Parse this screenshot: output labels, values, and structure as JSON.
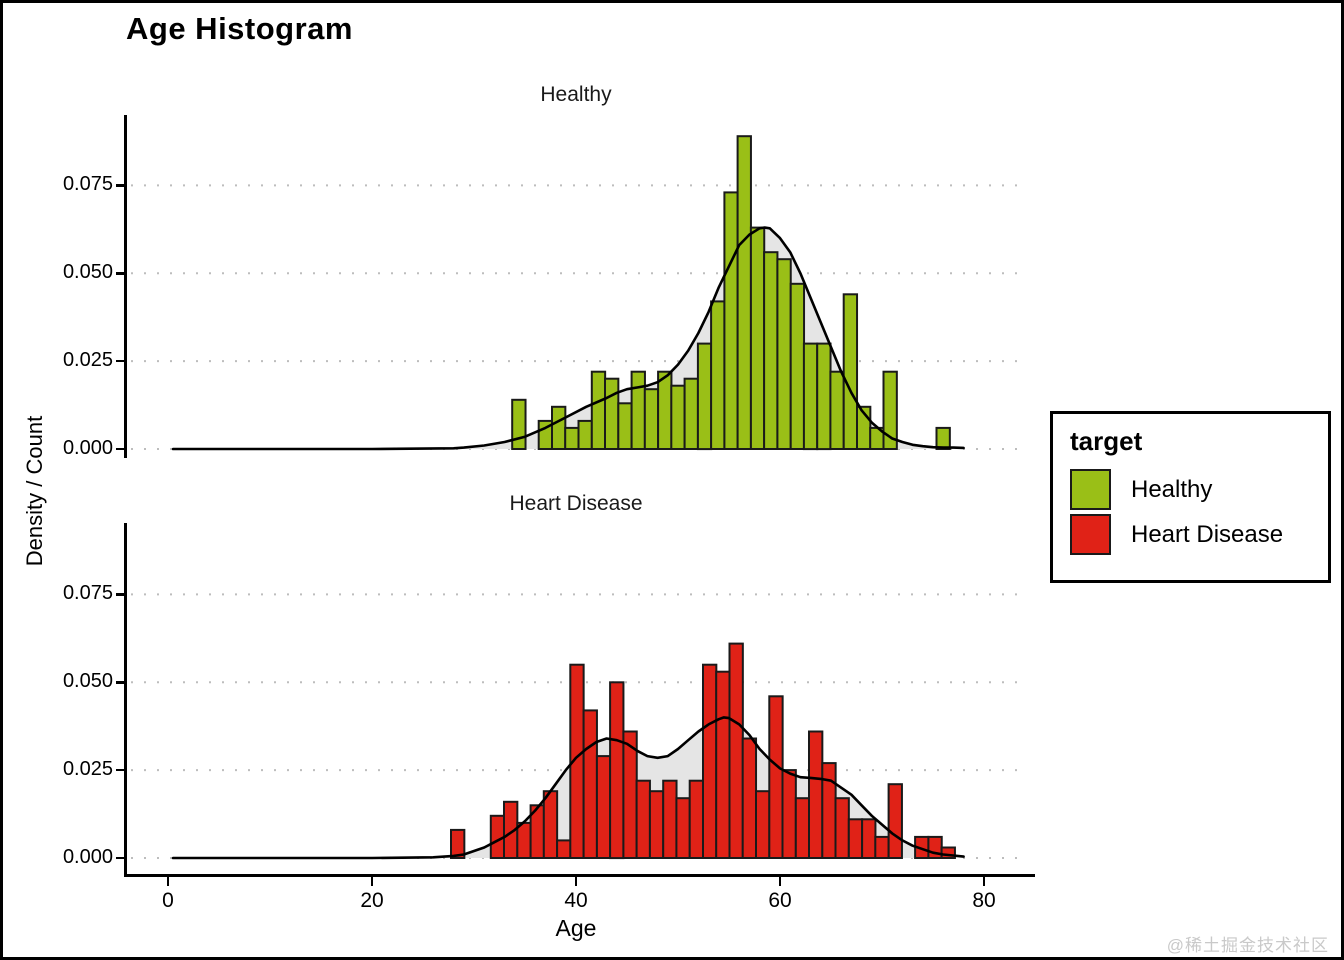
{
  "frame": {
    "title": "Age Histogram",
    "watermark": "@稀土掘金技术社区"
  },
  "axes": {
    "x_label": "Age",
    "y_label": "Density / Count",
    "x_tick_labels": [
      "0",
      "20",
      "40",
      "60",
      "80"
    ],
    "y_tick_labels": [
      "0.075",
      "0.050",
      "0.025",
      "0.000"
    ]
  },
  "legend": {
    "title": "target",
    "items": [
      {
        "label": "Healthy",
        "color": "#9abf17"
      },
      {
        "label": "Heart Disease",
        "color": "#e02217"
      }
    ]
  },
  "colors": {
    "healthy_fill": "#9abf17",
    "heart_disease_fill": "#e02217",
    "bar_stroke": "#1a1a1a",
    "density_area_fill": "#e5e5e5",
    "density_line": "#000000",
    "gridline": "#bdbdbd",
    "watermark": "#c9c9c9"
  },
  "chart_data": {
    "type": "bar",
    "subtype": "faceted-histogram-with-density-overlay",
    "title": "Age Histogram",
    "xlabel": "Age",
    "ylabel": "Density / Count",
    "x_ticks": [
      0,
      20,
      40,
      60,
      80
    ],
    "y_ticks": [
      0,
      0.025,
      0.05,
      0.075
    ],
    "xlim": [
      -4.2,
      84.5
    ],
    "ylim": [
      0,
      0.095
    ],
    "bin_width_years": 1.31,
    "grid": "dotted horizontal lines at each y tick",
    "legend_position": "right, outside panels",
    "facets": [
      {
        "label": "Healthy",
        "bar_color": "#9abf17",
        "bars": {
          "age_centers": [
            34.4,
            37.0,
            38.3,
            39.6,
            40.9,
            42.2,
            43.5,
            44.8,
            46.1,
            47.4,
            48.7,
            50.0,
            51.3,
            52.6,
            53.9,
            55.2,
            56.5,
            57.8,
            59.1,
            60.4,
            61.7,
            63.0,
            64.3,
            65.6,
            66.9,
            68.2,
            69.5,
            70.8,
            76.0
          ],
          "densities": [
            0.014,
            0.008,
            0.012,
            0.006,
            0.008,
            0.022,
            0.02,
            0.013,
            0.022,
            0.017,
            0.022,
            0.018,
            0.02,
            0.03,
            0.042,
            0.073,
            0.089,
            0.063,
            0.056,
            0.054,
            0.047,
            0.03,
            0.03,
            0.022,
            0.044,
            0.012,
            0.006,
            0.022,
            0.006
          ]
        },
        "density_curve": {
          "age": [
            0.5,
            20,
            28,
            29,
            31,
            33,
            35,
            37,
            39,
            41,
            43,
            44,
            45,
            46,
            47,
            48,
            49,
            50,
            51,
            52,
            53,
            54,
            55,
            56,
            57,
            58,
            58.5,
            59,
            60,
            61,
            62,
            63,
            64,
            65,
            66,
            67,
            68,
            69,
            70,
            71,
            72,
            73,
            74,
            75,
            76,
            77,
            78
          ],
          "density": [
            0,
            0,
            0.0002,
            0.0004,
            0.001,
            0.002,
            0.0035,
            0.006,
            0.009,
            0.012,
            0.0145,
            0.016,
            0.017,
            0.0175,
            0.018,
            0.019,
            0.021,
            0.024,
            0.028,
            0.033,
            0.039,
            0.046,
            0.052,
            0.058,
            0.061,
            0.0628,
            0.063,
            0.0628,
            0.06,
            0.056,
            0.05,
            0.043,
            0.036,
            0.029,
            0.022,
            0.016,
            0.011,
            0.0075,
            0.005,
            0.003,
            0.002,
            0.0012,
            0.0008,
            0.0005,
            0.0004,
            0.0004,
            0.0003
          ]
        }
      },
      {
        "label": "Heart Disease",
        "bar_color": "#e02217",
        "bars": {
          "age_centers": [
            28.4,
            32.3,
            33.6,
            34.9,
            36.2,
            37.5,
            38.8,
            40.1,
            41.4,
            42.7,
            44.0,
            45.3,
            46.6,
            47.9,
            49.2,
            50.5,
            51.8,
            53.1,
            54.4,
            55.7,
            57.0,
            58.3,
            59.6,
            60.9,
            62.2,
            63.5,
            64.8,
            66.1,
            67.4,
            68.7,
            70.0,
            71.3,
            73.9,
            75.2,
            76.5
          ],
          "densities": [
            0.008,
            0.012,
            0.016,
            0.01,
            0.015,
            0.019,
            0.005,
            0.055,
            0.042,
            0.029,
            0.05,
            0.036,
            0.022,
            0.019,
            0.022,
            0.017,
            0.022,
            0.055,
            0.053,
            0.061,
            0.034,
            0.019,
            0.046,
            0.025,
            0.017,
            0.036,
            0.027,
            0.017,
            0.011,
            0.011,
            0.006,
            0.021,
            0.006,
            0.006,
            0.003
          ]
        },
        "density_curve": {
          "age": [
            0.5,
            20,
            26,
            28,
            29,
            30,
            31,
            32,
            33,
            34,
            35,
            36,
            37,
            38,
            39,
            40,
            41,
            42,
            43,
            44,
            45,
            46,
            47,
            48,
            49,
            50,
            51,
            52,
            53,
            54,
            54.5,
            55,
            56,
            57,
            58,
            59,
            60,
            61,
            62,
            63,
            64,
            65,
            66,
            67,
            68,
            69,
            70,
            71,
            72,
            73,
            74,
            75,
            76,
            77,
            78
          ],
          "density": [
            0,
            0,
            0.0002,
            0.0006,
            0.001,
            0.002,
            0.003,
            0.0045,
            0.006,
            0.008,
            0.0105,
            0.0135,
            0.017,
            0.021,
            0.025,
            0.0285,
            0.031,
            0.033,
            0.034,
            0.0335,
            0.0325,
            0.0305,
            0.029,
            0.0285,
            0.029,
            0.031,
            0.0335,
            0.036,
            0.038,
            0.0395,
            0.04,
            0.0398,
            0.038,
            0.035,
            0.031,
            0.028,
            0.0255,
            0.024,
            0.023,
            0.0228,
            0.0225,
            0.022,
            0.02,
            0.018,
            0.015,
            0.012,
            0.0095,
            0.007,
            0.005,
            0.0035,
            0.0025,
            0.0015,
            0.001,
            0.0007,
            0.0004
          ]
        }
      }
    ]
  }
}
